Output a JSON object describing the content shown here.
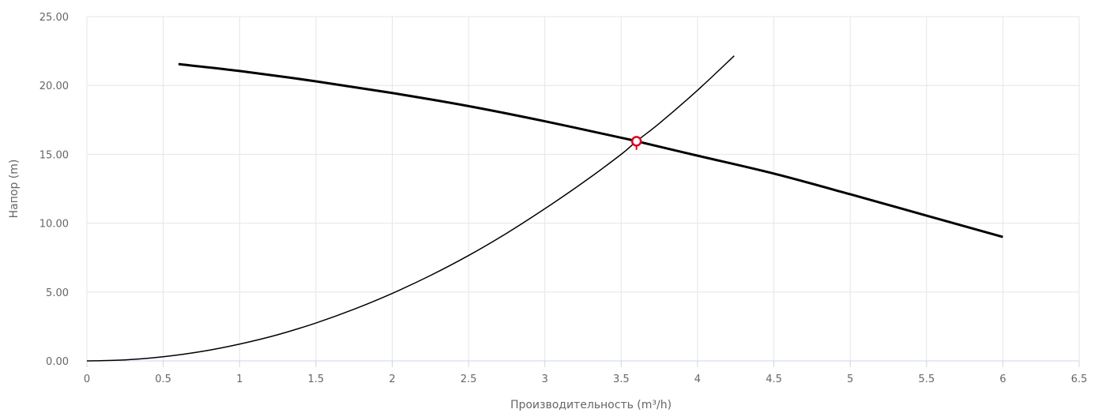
{
  "chart_data": {
    "type": "line",
    "xlabel": "Производительность (m³/h)",
    "ylabel": "Напор (m)",
    "xlim": [
      0,
      6.5
    ],
    "ylim": [
      0,
      25
    ],
    "x_ticks": [
      "0",
      "0.5",
      "1",
      "1.5",
      "2",
      "2.5",
      "3",
      "3.5",
      "4",
      "4.5",
      "5",
      "5.5",
      "6",
      "6.5"
    ],
    "y_ticks": [
      "0.00",
      "5.00",
      "10.00",
      "15.00",
      "20.00",
      "25.00"
    ],
    "grid": true,
    "series": [
      {
        "color": "#000000",
        "x": [
          0.6,
          1.0,
          1.5,
          2.0,
          2.5,
          3.0,
          3.5,
          3.6,
          4.0,
          4.5,
          5.0,
          5.5,
          6.0
        ],
        "y": [
          21.55,
          21.05,
          20.3,
          19.45,
          18.5,
          17.4,
          16.2,
          15.95,
          14.9,
          13.6,
          12.1,
          10.55,
          9.0
        ]
      },
      {
        "color": "#000000",
        "x": [
          0.0,
          0.25,
          0.5,
          0.75,
          1.0,
          1.25,
          1.5,
          1.75,
          2.0,
          2.25,
          2.5,
          2.75,
          3.0,
          3.25,
          3.5,
          3.6,
          3.75,
          4.0,
          4.24
        ],
        "y": [
          0.0,
          0.07,
          0.3,
          0.68,
          1.22,
          1.9,
          2.75,
          3.75,
          4.9,
          6.2,
          7.65,
          9.27,
          11.05,
          12.95,
          15.0,
          15.95,
          17.25,
          19.65,
          22.15
        ]
      }
    ],
    "operating_point": {
      "x": 3.6,
      "y": 15.95,
      "color": "#e0001b"
    }
  }
}
